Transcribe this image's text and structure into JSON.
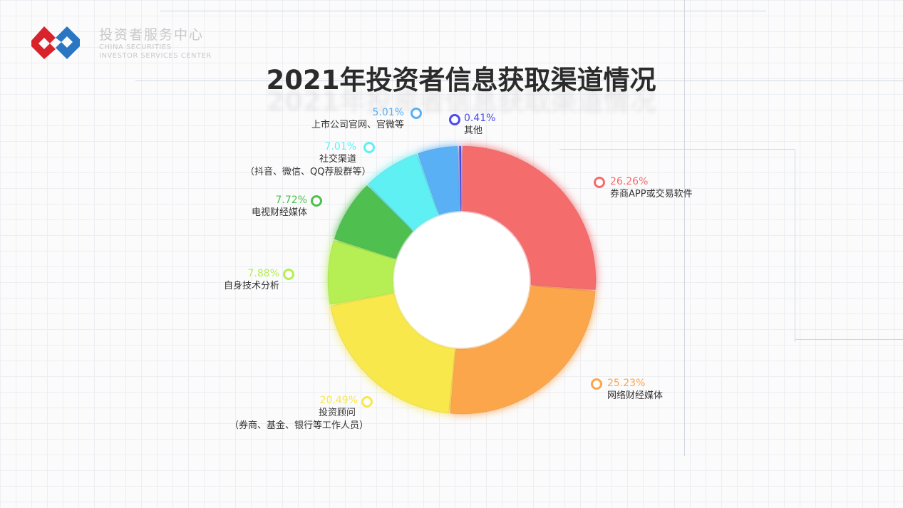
{
  "header": {
    "org_name_cn": "投资者服务中心",
    "org_name_en_1": "CHINA SECURITIES",
    "org_name_en_2": "INVESTOR SERVICES CENTER",
    "title": "2021年投资者信息获取渠道情况"
  },
  "chart_data": {
    "type": "pie",
    "donut": true,
    "title": "2021年投资者信息获取渠道情况",
    "slices": [
      {
        "label": "券商APP或交易软件",
        "sublabel": "",
        "value": 26.26,
        "display": "26.26%",
        "color": "#f46c6c"
      },
      {
        "label": "网络财经媒体",
        "sublabel": "",
        "value": 25.23,
        "display": "25.23%",
        "color": "#fca64c"
      },
      {
        "label": "投资顾问",
        "sublabel": "（券商、基金、银行等工作人员）",
        "value": 20.49,
        "display": "20.49%",
        "color": "#f8e84c"
      },
      {
        "label": "自身技术分析",
        "sublabel": "",
        "value": 7.88,
        "display": "7.88%",
        "color": "#b5ef52"
      },
      {
        "label": "电视财经媒体",
        "sublabel": "",
        "value": 7.72,
        "display": "7.72%",
        "color": "#4fbf4f"
      },
      {
        "label": "社交渠道",
        "sublabel": "（抖音、微信、QQ荐股群等）",
        "value": 7.01,
        "display": "7.01%",
        "color": "#5ef0f4"
      },
      {
        "label": "上市公司官网、官微等",
        "sublabel": "",
        "value": 5.01,
        "display": "5.01%",
        "color": "#5ab0f4"
      },
      {
        "label": "其他",
        "sublabel": "",
        "value": 0.41,
        "display": "0.41%",
        "color": "#4b4be8"
      }
    ],
    "legend": "labels-around"
  }
}
